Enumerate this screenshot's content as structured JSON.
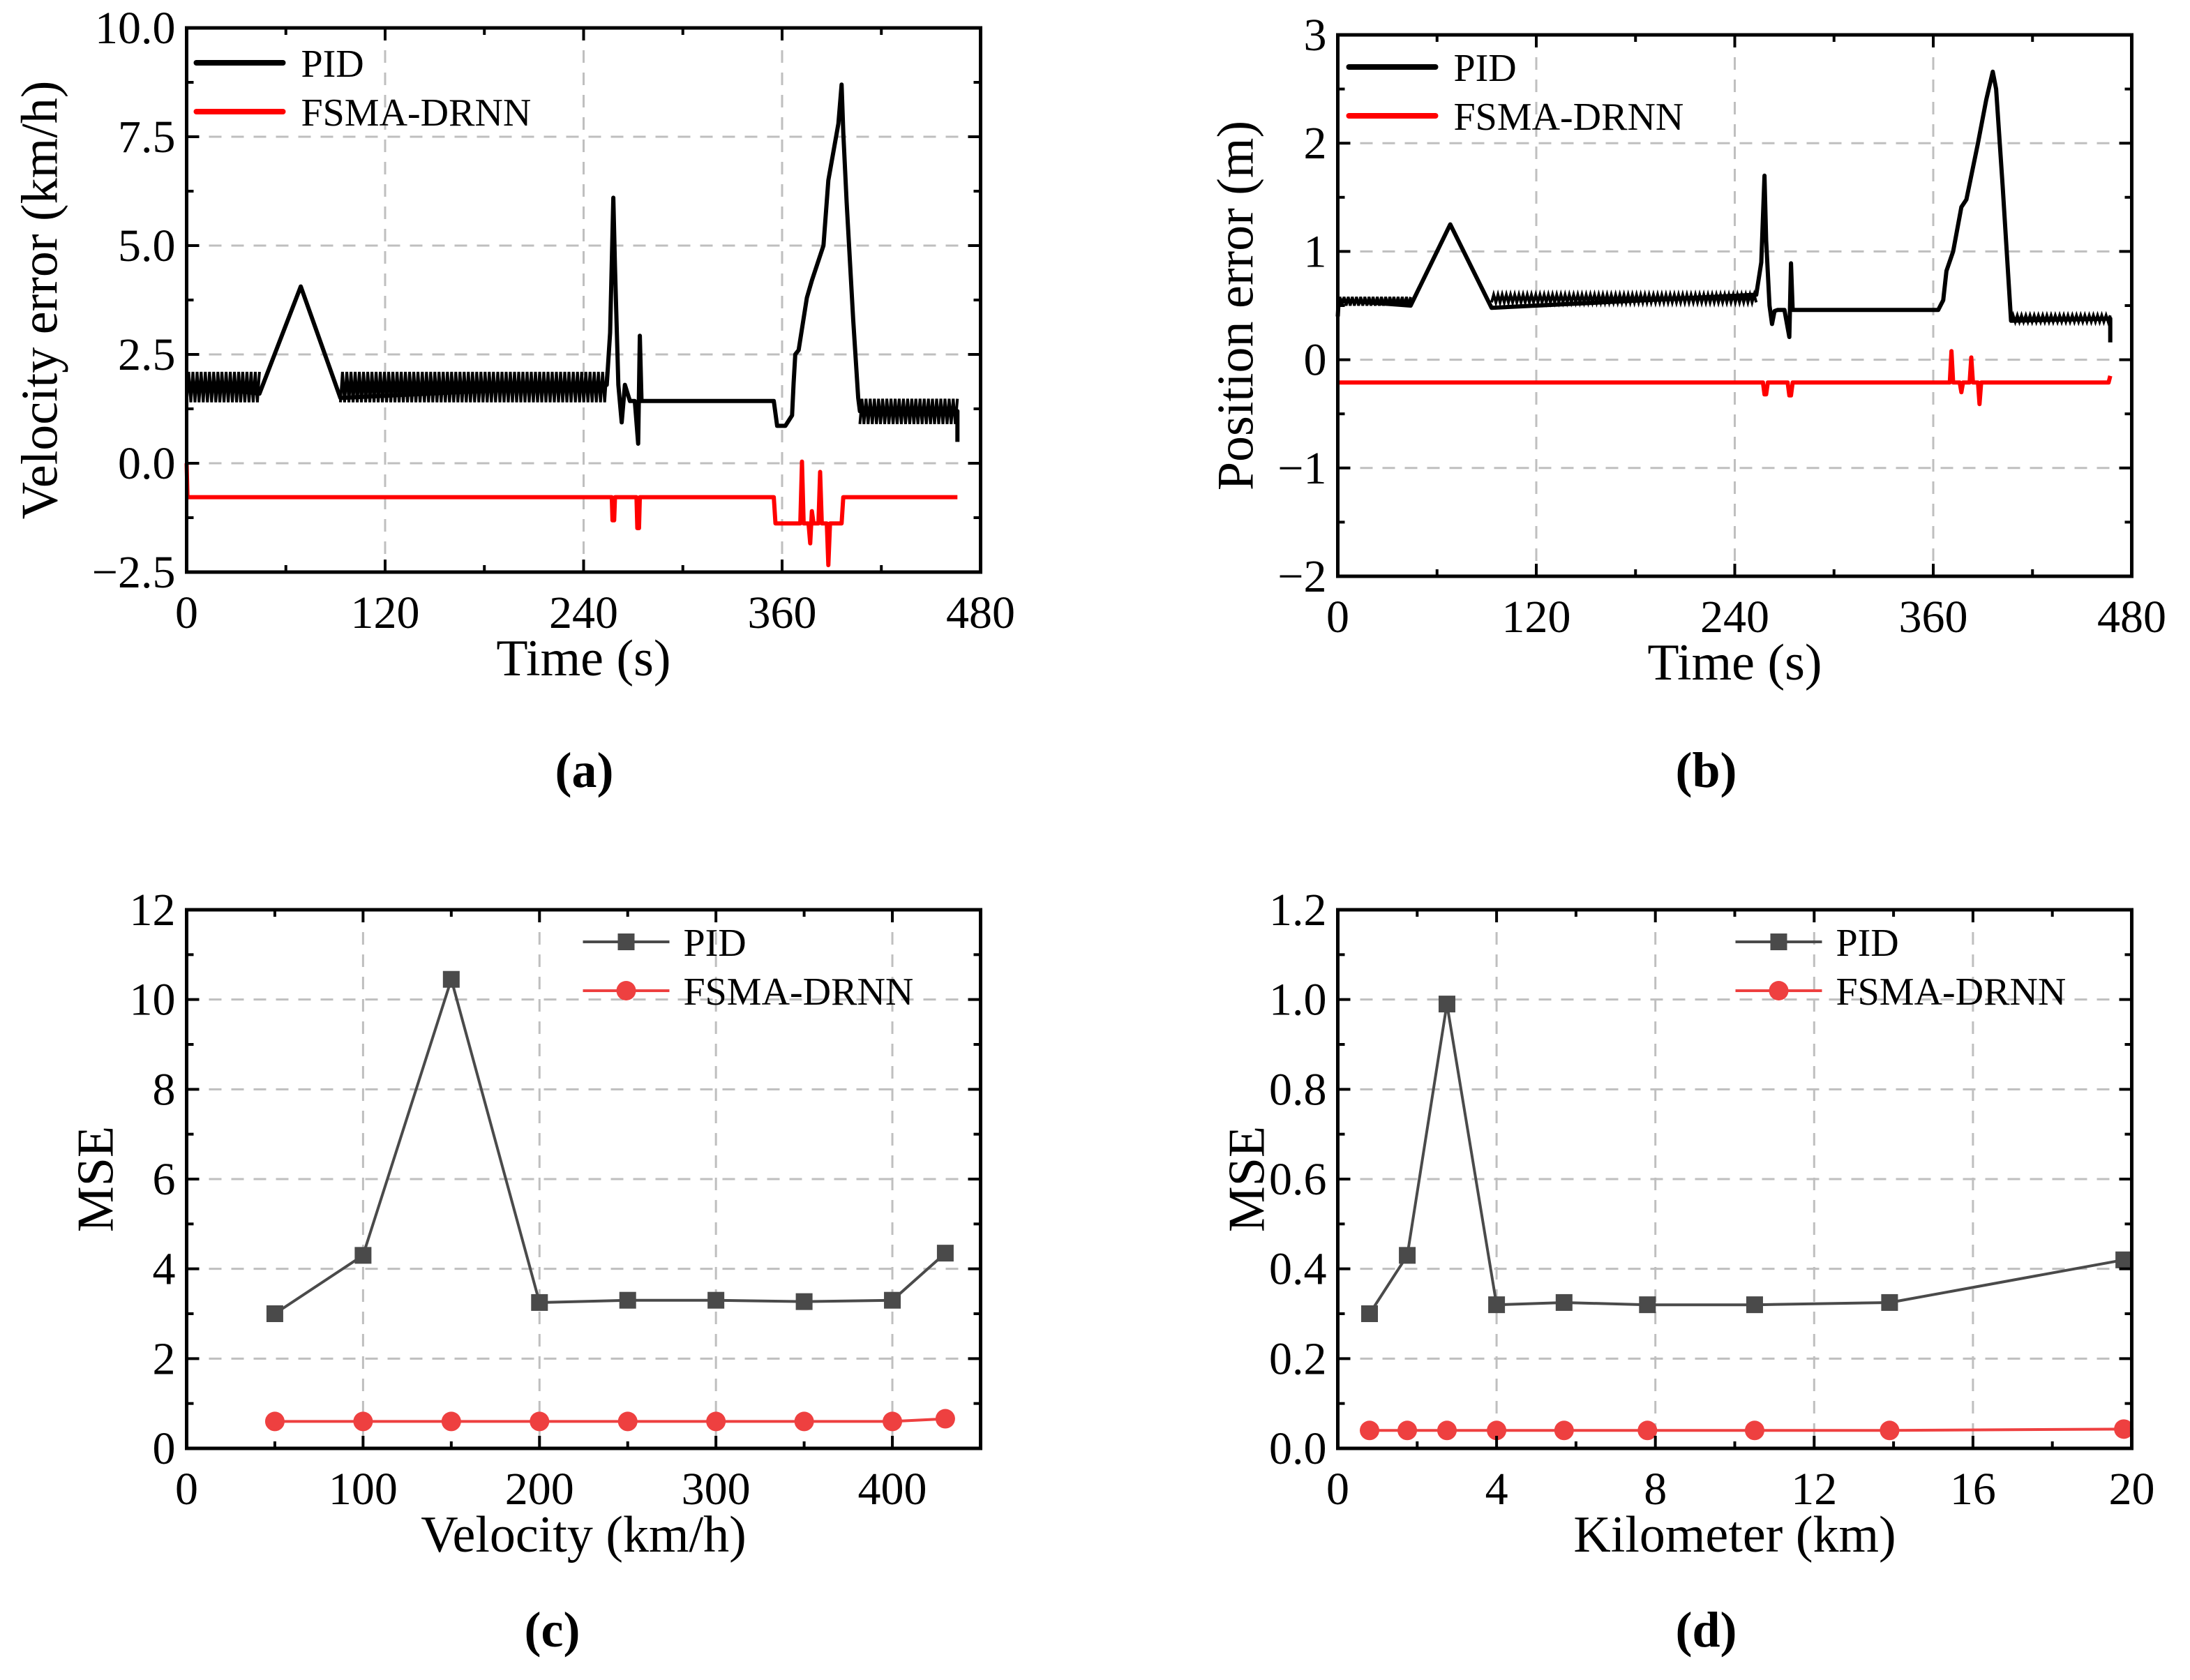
{
  "colors": {
    "pid_line": "#000000",
    "fsma_line": "#ff0000",
    "pid_marker": "#4a4a4a",
    "fsma_marker": "#ee4040",
    "grid": "#bfbfbf"
  },
  "chart_data": [
    {
      "id": "a",
      "type": "line",
      "caption": "(a)",
      "xlabel": "Time (s)",
      "ylabel": "Velocity error (km/h)",
      "xlim": [
        0,
        480
      ],
      "ylim": [
        -2.5,
        10.0
      ],
      "xticks": [
        0,
        120,
        240,
        360,
        480
      ],
      "xtick_labels": [
        "0",
        "120",
        "240",
        "360",
        "480"
      ],
      "yticks": [
        -2.5,
        0,
        2.5,
        5,
        7.5,
        10
      ],
      "ytick_labels": [
        "−2.5",
        "0.0",
        "2.5",
        "5.0",
        "7.5",
        "10.0"
      ],
      "grid": true,
      "legend": "top-left",
      "series": [
        {
          "name": "PID",
          "color": "#000000",
          "marker": "none",
          "bands": [
            {
              "x": [
                0,
                44
              ],
              "low": 1.4,
              "high": 2.1
            },
            {
              "x": [
                93,
                254
              ],
              "low": 1.4,
              "high": 2.1
            },
            {
              "x": [
                407,
                466
              ],
              "low": 0.9,
              "high": 1.48
            }
          ],
          "x": [
            0,
            44,
            69,
            93,
            254,
            256,
            258,
            259,
            261,
            263,
            265,
            268,
            271,
            273,
            274,
            275,
            276,
            278,
            355,
            357,
            362,
            366,
            367,
            368,
            370,
            375,
            378,
            385,
            388,
            394,
            396,
            397,
            399,
            403,
            406,
            407,
            466,
            466
          ],
          "y": [
            1.8,
            1.6,
            4.06,
            1.5,
            1.8,
            3.0,
            6.1,
            4.5,
            1.8,
            0.94,
            1.8,
            1.43,
            1.43,
            0.45,
            2.93,
            1.43,
            1.43,
            1.43,
            1.43,
            0.86,
            0.86,
            1.1,
            1.84,
            2.5,
            2.6,
            3.8,
            4.2,
            5.0,
            6.5,
            7.8,
            8.7,
            7.6,
            6.0,
            3.3,
            1.5,
            1.2,
            1.2,
            0.49
          ]
        },
        {
          "name": "FSMA-DRNN",
          "color": "#ff0000",
          "marker": "none",
          "x": [
            0,
            0.5,
            257,
            257.5,
            258.5,
            259,
            272,
            272.5,
            273.5,
            274,
            355,
            356,
            371,
            372,
            373,
            376,
            377,
            378,
            379,
            382,
            383,
            384,
            387,
            388,
            389,
            396,
            397,
            466
          ],
          "y": [
            0,
            -0.78,
            -0.78,
            -1.31,
            -1.31,
            -0.78,
            -0.78,
            -1.49,
            -1.49,
            -0.78,
            -0.78,
            -1.38,
            -1.38,
            0.04,
            -1.38,
            -1.38,
            -1.84,
            -1.1,
            -1.38,
            -1.38,
            -0.2,
            -1.38,
            -1.38,
            -2.34,
            -1.38,
            -1.38,
            -0.78,
            -0.78
          ]
        }
      ]
    },
    {
      "id": "b",
      "type": "line",
      "caption": "(b)",
      "xlabel": "Time (s)",
      "ylabel": "Position error (m)",
      "xlim": [
        0,
        480
      ],
      "ylim": [
        -2,
        3
      ],
      "xticks": [
        0,
        120,
        240,
        360,
        480
      ],
      "xtick_labels": [
        "0",
        "120",
        "240",
        "360",
        "480"
      ],
      "yticks": [
        -2,
        -1,
        0,
        1,
        2,
        3
      ],
      "ytick_labels": [
        "−2",
        "−1",
        "0",
        "1",
        "2",
        "3"
      ],
      "grid": true,
      "legend": "top-left",
      "series": [
        {
          "name": "PID",
          "color": "#000000",
          "marker": "none",
          "bands": [
            {
              "x": [
                0,
                44
              ],
              "low": 0.5,
              "high": 0.58
            },
            {
              "x": [
                93,
                253
              ],
              "low": 0.53,
              "high": 0.6
            },
            {
              "x": [
                407,
                467
              ],
              "low": 0.35,
              "high": 0.41
            }
          ],
          "x": [
            0,
            0.5,
            44,
            68,
            93,
            253,
            256,
            258,
            259,
            261,
            262.5,
            264,
            266,
            270,
            273,
            274,
            275,
            277,
            363,
            366,
            368,
            372,
            377,
            380,
            387,
            392,
            396,
            398,
            402,
            407,
            467,
            467
          ],
          "y": [
            0.4,
            0.55,
            0.5,
            1.25,
            0.48,
            0.6,
            0.9,
            1.7,
            1.1,
            0.5,
            0.33,
            0.45,
            0.46,
            0.46,
            0.21,
            0.89,
            0.46,
            0.46,
            0.46,
            0.55,
            0.82,
            1.0,
            1.41,
            1.48,
            2.0,
            2.4,
            2.66,
            2.5,
            1.6,
            0.36,
            0.38,
            0.16
          ]
        },
        {
          "name": "FSMA-DRNN",
          "color": "#ff0000",
          "marker": "none",
          "x": [
            0,
            257,
            258,
            259,
            260,
            272,
            273,
            274,
            275,
            370,
            371,
            372,
            376,
            377,
            378,
            382,
            383,
            384,
            387,
            388,
            389,
            466,
            467
          ],
          "y": [
            -0.21,
            -0.21,
            -0.32,
            -0.32,
            -0.21,
            -0.21,
            -0.33,
            -0.33,
            -0.21,
            -0.21,
            0.08,
            -0.21,
            -0.21,
            -0.3,
            -0.21,
            -0.21,
            0.02,
            -0.21,
            -0.21,
            -0.41,
            -0.21,
            -0.21,
            -0.15
          ]
        }
      ]
    },
    {
      "id": "c",
      "type": "line",
      "caption": "(c)",
      "xlabel": "Velocity (km/h)",
      "ylabel": "MSE",
      "xlim": [
        0,
        450
      ],
      "ylim": [
        0,
        12
      ],
      "xticks": [
        0,
        100,
        200,
        300,
        400
      ],
      "xtick_labels": [
        "0",
        "100",
        "200",
        "300",
        "400"
      ],
      "yticks": [
        0,
        2,
        4,
        6,
        8,
        10,
        12
      ],
      "ytick_labels": [
        "0",
        "2",
        "4",
        "6",
        "8",
        "10",
        "12"
      ],
      "grid": true,
      "legend": "top-right",
      "series": [
        {
          "name": "PID",
          "color": "#4a4a4a",
          "marker": "square",
          "x": [
            50,
            100,
            150,
            200,
            250,
            300,
            350,
            400,
            430
          ],
          "y": [
            3.0,
            4.3,
            10.45,
            3.25,
            3.3,
            3.3,
            3.27,
            3.3,
            4.35
          ]
        },
        {
          "name": "FSMA-DRNN",
          "color": "#ee4040",
          "marker": "circle",
          "x": [
            50,
            100,
            150,
            200,
            250,
            300,
            350,
            400,
            430
          ],
          "y": [
            0.6,
            0.6,
            0.6,
            0.6,
            0.6,
            0.6,
            0.6,
            0.6,
            0.66
          ]
        }
      ]
    },
    {
      "id": "d",
      "type": "line",
      "caption": "(d)",
      "xlabel": "Kilometer (km)",
      "ylabel": "MSE",
      "xlim": [
        0,
        20
      ],
      "ylim": [
        0,
        1.2
      ],
      "xticks": [
        0,
        4,
        8,
        12,
        16,
        20
      ],
      "xtick_labels": [
        "0",
        "4",
        "8",
        "12",
        "16",
        "20"
      ],
      "yticks": [
        0,
        0.2,
        0.4,
        0.6,
        0.8,
        1.0,
        1.2
      ],
      "ytick_labels": [
        "0.0",
        "0.2",
        "0.4",
        "0.6",
        "0.8",
        "1.0",
        "1.2"
      ],
      "grid": true,
      "legend": "top-right",
      "series": [
        {
          "name": "PID",
          "color": "#4a4a4a",
          "marker": "square",
          "x": [
            0.8,
            1.75,
            2.75,
            4.0,
            5.7,
            7.8,
            10.5,
            13.9,
            19.8
          ],
          "y": [
            0.3,
            0.43,
            0.99,
            0.32,
            0.325,
            0.32,
            0.32,
            0.325,
            0.42
          ]
        },
        {
          "name": "FSMA-DRNN",
          "color": "#ee4040",
          "marker": "circle",
          "x": [
            0.8,
            1.75,
            2.75,
            4.0,
            5.7,
            7.8,
            10.5,
            13.9,
            19.8
          ],
          "y": [
            0.04,
            0.04,
            0.04,
            0.04,
            0.04,
            0.04,
            0.04,
            0.04,
            0.043
          ]
        }
      ]
    }
  ]
}
